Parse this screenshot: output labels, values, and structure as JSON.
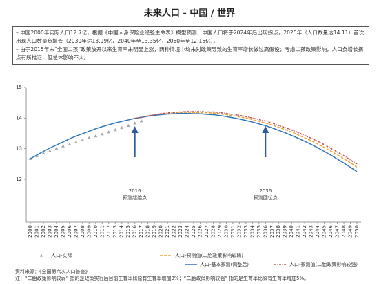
{
  "title": "未来人口 - 中国 / 世界",
  "notes": [
    "– 中国2000年实际人口12.7亿，根据《中国人身保险业经验生命表》模型预测，中国人口将于2024年后出现拐点，2025年（人口数量达14.11）首次出现人口数量负增长（2030年达13.99亿，2040年至13.35亿，2050年至12.15亿）。",
    "– 由于2015年末“全面二孩”政策放开以来生育率未明显上涨，两种情境中均未对政策导致的生育率增长做过高假设；考虑二孩政策影响，人口负增长拐点有所推迟，但总体影响不大。"
  ],
  "chart_data": {
    "type": "line",
    "x": [
      2000,
      2001,
      2002,
      2003,
      2004,
      2005,
      2006,
      2007,
      2008,
      2009,
      2010,
      2011,
      2012,
      2013,
      2014,
      2015,
      2016,
      2017,
      2018,
      2019,
      2020,
      2021,
      2022,
      2023,
      2024,
      2025,
      2026,
      2027,
      2028,
      2029,
      2030,
      2031,
      2032,
      2033,
      2034,
      2035,
      2036,
      2037,
      2038,
      2039,
      2040,
      2041,
      2042,
      2043,
      2044,
      2045,
      2046,
      2047,
      2048,
      2049,
      2050
    ],
    "xlim": [
      2000,
      2050
    ],
    "ylim": [
      10.6,
      15
    ],
    "yticks": [
      12,
      13,
      14,
      15
    ],
    "series": [
      {
        "name": "人口-实际",
        "color": "#a6a6a6",
        "style": "triangle",
        "values": [
          12.67,
          12.76,
          12.85,
          12.92,
          13.0,
          13.08,
          13.14,
          13.21,
          13.28,
          13.35,
          13.41,
          13.47,
          13.54,
          13.61,
          13.68,
          13.75,
          13.83,
          13.9,
          null,
          null,
          null,
          null,
          null,
          null,
          null,
          null,
          null,
          null,
          null,
          null,
          null,
          null,
          null,
          null,
          null,
          null,
          null,
          null,
          null,
          null,
          null,
          null,
          null,
          null,
          null,
          null,
          null,
          null,
          null,
          null,
          null
        ]
      },
      {
        "name": "人口-预测值(二胎政策影响较弱)",
        "color": "#f0a030",
        "style": "dashed",
        "values": [
          null,
          null,
          null,
          null,
          null,
          null,
          null,
          null,
          null,
          null,
          null,
          null,
          null,
          null,
          null,
          null,
          13.99,
          14.02,
          14.07,
          14.1,
          14.13,
          14.15,
          14.17,
          14.18,
          14.19,
          14.18,
          14.18,
          14.17,
          14.16,
          14.14,
          14.11,
          14.08,
          14.04,
          14.0,
          13.95,
          13.89,
          13.84,
          13.77,
          13.7,
          13.62,
          13.54,
          13.45,
          13.35,
          13.26,
          13.15,
          13.04,
          12.92,
          12.8,
          12.67,
          12.54,
          12.4
        ]
      },
      {
        "name": "人口-基本预测(调整后)",
        "color": "#2e75b6",
        "style": "solid",
        "values": [
          12.67,
          12.79,
          12.91,
          13.02,
          13.12,
          13.22,
          13.32,
          13.41,
          13.49,
          13.57,
          13.65,
          13.72,
          13.78,
          13.84,
          13.89,
          13.94,
          13.99,
          14.02,
          14.06,
          14.09,
          14.11,
          14.13,
          14.14,
          14.15,
          14.15,
          14.14,
          14.14,
          14.12,
          14.11,
          14.08,
          14.05,
          14.01,
          13.97,
          13.92,
          13.87,
          13.81,
          13.75,
          13.68,
          13.6,
          13.52,
          13.43,
          13.34,
          13.24,
          13.14,
          13.03,
          12.91,
          12.79,
          12.66,
          12.53,
          12.39,
          12.25
        ]
      },
      {
        "name": "人口-预测值(二胎政策影响较强)",
        "color": "#c0504d",
        "style": "dashdot",
        "values": [
          null,
          null,
          null,
          null,
          null,
          null,
          null,
          null,
          null,
          null,
          null,
          null,
          null,
          null,
          null,
          null,
          13.99,
          14.03,
          14.07,
          14.11,
          14.14,
          14.17,
          14.18,
          14.2,
          14.21,
          14.21,
          14.21,
          14.2,
          14.2,
          14.18,
          14.15,
          14.12,
          14.09,
          14.05,
          14.0,
          13.95,
          13.9,
          13.84,
          13.76,
          13.69,
          13.61,
          13.53,
          13.43,
          13.34,
          13.24,
          13.13,
          13.01,
          12.89,
          12.77,
          12.63,
          12.5
        ]
      }
    ],
    "annotations": [
      {
        "year": "2016",
        "label": "预测起始点"
      },
      {
        "year": "2036",
        "label": "预测回位点"
      }
    ],
    "source": "资料来源：《全国第六次人口普查》",
    "footnote": "注：“二胎政策影响较弱” 指的是政策实行后目前生育率比原有生育率增加3%；“二胎政策影响较强” 指的是生育率比原有生育率增加5%。"
  }
}
